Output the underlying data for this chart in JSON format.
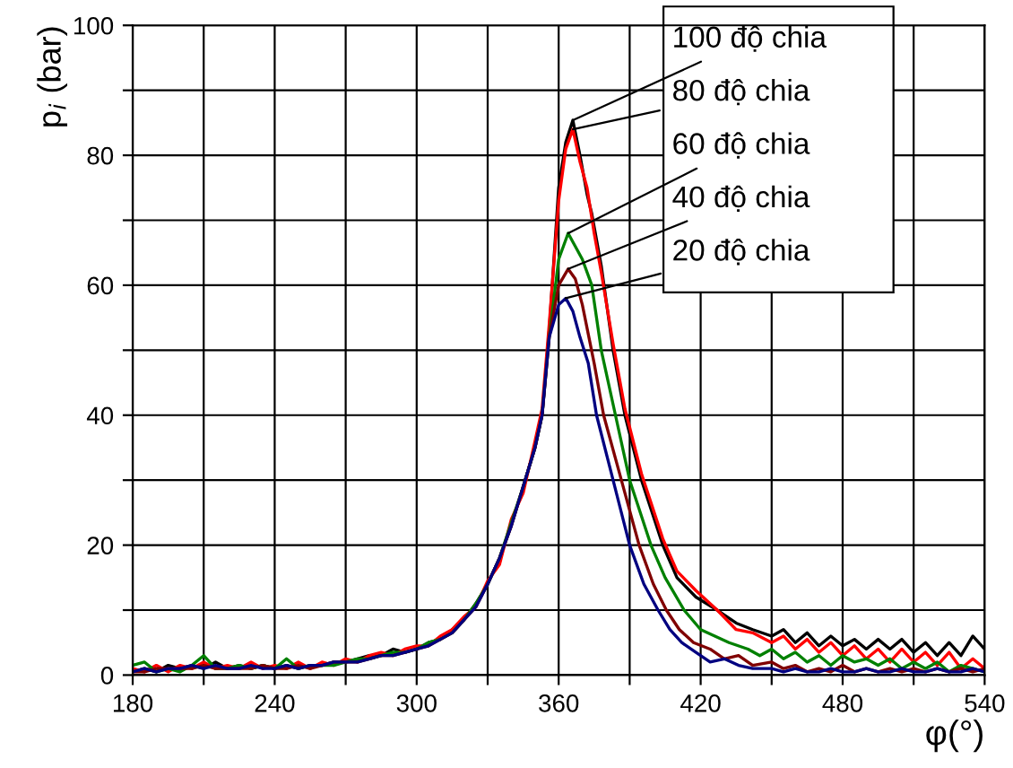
{
  "chart_data": {
    "type": "line",
    "xlabel": "φ(°)",
    "ylabel": "p$_{i}$ (bar)",
    "xlim": [
      180,
      540
    ],
    "ylim": [
      0,
      100
    ],
    "xticks": [
      180,
      {
        "value": 210,
        "label": null
      },
      240,
      {
        "value": 270,
        "label": null
      },
      300,
      {
        "value": 330,
        "label": null
      },
      360,
      {
        "value": 390,
        "label": null
      },
      420,
      {
        "value": 450,
        "label": null
      },
      480,
      {
        "value": 510,
        "label": null
      },
      540
    ],
    "yticks": [
      0,
      {
        "value": 10,
        "label": null
      },
      20,
      {
        "value": 30,
        "label": null
      },
      40,
      {
        "value": 50,
        "label": null
      },
      60,
      {
        "value": 70,
        "label": null
      },
      80,
      {
        "value": 90,
        "label": null
      },
      100
    ],
    "grid": true,
    "legend": false,
    "marker": "none",
    "line_style": "solid",
    "series": [
      {
        "name": "100 độ chia",
        "color": "#000000",
        "x": [
          180,
          185,
          190,
          195,
          200,
          205,
          210,
          215,
          220,
          225,
          230,
          235,
          240,
          245,
          250,
          255,
          260,
          265,
          270,
          275,
          280,
          285,
          290,
          295,
          300,
          305,
          310,
          315,
          320,
          325,
          330,
          335,
          340,
          345,
          350,
          353,
          356,
          360,
          363,
          366,
          369,
          372,
          374,
          378,
          383,
          388,
          395,
          404,
          410,
          418,
          427,
          435,
          442,
          450,
          455,
          460,
          465,
          470,
          475,
          480,
          485,
          490,
          495,
          500,
          505,
          510,
          515,
          520,
          525,
          530,
          535,
          540
        ],
        "values": [
          0.5,
          1,
          0.5,
          1.5,
          1,
          1.5,
          1,
          2,
          1,
          1.5,
          1,
          1.5,
          1,
          1.5,
          1,
          1.5,
          1.5,
          2,
          2,
          2.5,
          3,
          3,
          4,
          3.5,
          4,
          5,
          5.5,
          7,
          8.5,
          11,
          14,
          18,
          23,
          29,
          35,
          40,
          53,
          75,
          82,
          85.4,
          80,
          74,
          71,
          63,
          50,
          40,
          30,
          20,
          15,
          12,
          10,
          8,
          7,
          6,
          7,
          5,
          6.5,
          4.5,
          6,
          4.5,
          5.5,
          4,
          5.5,
          4,
          5.5,
          3.5,
          5,
          3,
          5,
          3,
          6,
          4
        ]
      },
      {
        "name": "80 độ chia",
        "color": "#ff0000",
        "x": [
          180,
          185,
          190,
          195,
          200,
          205,
          210,
          215,
          220,
          225,
          230,
          235,
          240,
          245,
          250,
          255,
          260,
          265,
          270,
          275,
          280,
          285,
          290,
          295,
          300,
          305,
          310,
          315,
          320,
          325,
          330,
          335,
          340,
          345,
          350,
          353,
          356,
          360,
          363,
          366,
          369,
          372,
          375,
          378,
          383,
          388,
          395,
          404,
          410,
          418,
          427,
          435,
          442,
          450,
          455,
          460,
          465,
          470,
          475,
          480,
          485,
          490,
          495,
          500,
          505,
          510,
          515,
          520,
          525,
          530,
          535,
          540
        ],
        "values": [
          1,
          0.5,
          1.5,
          0.5,
          1.5,
          1,
          2,
          1,
          1.5,
          1,
          2,
          1,
          1.5,
          1,
          2,
          1,
          2,
          1.5,
          2.5,
          2,
          3,
          3.5,
          3,
          4,
          4.5,
          4.5,
          6,
          7,
          9,
          10.5,
          14.5,
          17,
          24,
          28,
          36,
          41,
          54,
          73,
          81,
          84,
          79,
          75,
          68,
          62,
          51,
          41,
          31,
          21,
          16,
          13,
          10,
          7,
          6.5,
          5,
          6,
          4,
          5.5,
          3.5,
          5,
          3,
          4.5,
          2.5,
          4,
          2,
          4,
          2,
          3.5,
          1.5,
          3.5,
          1,
          2.5,
          1
        ]
      },
      {
        "name": "60 độ chia",
        "color": "#008000",
        "x": [
          180,
          185,
          190,
          195,
          200,
          205,
          210,
          215,
          220,
          225,
          230,
          235,
          240,
          245,
          250,
          255,
          260,
          265,
          270,
          275,
          280,
          285,
          290,
          295,
          300,
          305,
          310,
          315,
          320,
          325,
          330,
          335,
          340,
          345,
          350,
          353,
          356,
          360,
          364,
          367,
          370,
          374,
          378,
          384,
          390,
          399,
          405,
          413,
          420,
          426,
          432,
          440,
          445,
          450,
          455,
          460,
          465,
          470,
          475,
          480,
          485,
          490,
          495,
          500,
          505,
          510,
          515,
          520,
          525,
          530,
          535,
          540
        ],
        "values": [
          1.5,
          2,
          0.5,
          1,
          0.5,
          1.5,
          3,
          1,
          1,
          1.5,
          1,
          1.5,
          1,
          2.5,
          1,
          1.5,
          1.5,
          1.5,
          2,
          2.5,
          2.5,
          3,
          3.5,
          3.5,
          4,
          5,
          5.5,
          6.5,
          8.5,
          11,
          14,
          18,
          23.5,
          29,
          35,
          40,
          52,
          64,
          68,
          66,
          64,
          60,
          50,
          40,
          30,
          20,
          15,
          10,
          7,
          6,
          5,
          4,
          3,
          4,
          2.5,
          3.5,
          2,
          3,
          1.5,
          3,
          2,
          2.5,
          1.5,
          2.5,
          1,
          2,
          1,
          2,
          0.5,
          1.5,
          1,
          0.5
        ]
      },
      {
        "name": "40 độ chia",
        "color": "#800000",
        "x": [
          180,
          185,
          190,
          195,
          200,
          205,
          210,
          215,
          220,
          225,
          230,
          235,
          240,
          245,
          250,
          255,
          260,
          265,
          270,
          275,
          280,
          285,
          290,
          295,
          300,
          305,
          310,
          315,
          320,
          325,
          330,
          335,
          340,
          345,
          350,
          353,
          356,
          360,
          364,
          367,
          370,
          375,
          379,
          386.5,
          394,
          400,
          405.5,
          411,
          417,
          424,
          430,
          436,
          442,
          450,
          455,
          460,
          465,
          470,
          475,
          480,
          485,
          490,
          495,
          500,
          505,
          510,
          515,
          520,
          525,
          530,
          535,
          540
        ],
        "values": [
          0.5,
          0.5,
          1,
          1,
          1,
          1,
          1.5,
          1,
          1,
          1,
          1,
          1.5,
          1,
          1,
          1.5,
          1,
          1.5,
          2,
          2,
          2,
          2.5,
          3,
          3,
          3.5,
          4,
          4.5,
          5.5,
          6.5,
          8.5,
          10.5,
          14,
          18,
          23,
          29,
          35,
          40,
          52,
          60,
          62.5,
          61,
          57,
          48,
          40,
          30,
          20,
          14,
          10,
          7,
          5,
          4,
          2.5,
          3,
          1.5,
          2,
          1,
          1.5,
          0.5,
          1,
          0.5,
          1.5,
          0.5,
          1,
          0.5,
          1,
          0.5,
          1,
          0.5,
          1,
          0.5,
          1,
          0.5,
          1
        ]
      },
      {
        "name": "20 độ chia",
        "color": "#000080",
        "x": [
          180,
          185,
          190,
          195,
          200,
          205,
          210,
          215,
          220,
          225,
          230,
          235,
          240,
          245,
          250,
          255,
          260,
          265,
          270,
          275,
          280,
          285,
          290,
          295,
          300,
          305,
          310,
          315,
          320,
          325,
          330,
          335,
          340,
          345,
          350,
          353,
          356,
          360,
          363,
          366,
          369,
          372.5,
          376,
          383,
          390,
          396,
          402,
          407,
          412,
          418,
          424,
          430,
          436,
          442,
          450,
          455,
          460,
          465,
          470,
          475,
          480,
          485,
          490,
          495,
          500,
          505,
          510,
          515,
          520,
          525,
          530,
          535,
          540
        ],
        "values": [
          0.5,
          1,
          0.5,
          1,
          1,
          1.5,
          1,
          1.5,
          1,
          1,
          1.5,
          1,
          1,
          1.5,
          1,
          1.5,
          1.5,
          2,
          2,
          2,
          2.5,
          3,
          3,
          3.5,
          4,
          4.5,
          5.5,
          6.5,
          8.5,
          10.5,
          14,
          18,
          23,
          29,
          35,
          40,
          52,
          57,
          58,
          56,
          52,
          48,
          40,
          30,
          20,
          14,
          10,
          7,
          5,
          3.5,
          2,
          2.5,
          1.5,
          1,
          1,
          0.5,
          1,
          0.5,
          0.5,
          1,
          0.5,
          0.5,
          1,
          0.5,
          0.5,
          1,
          0.5,
          0.5,
          1,
          0.5,
          0.5,
          1,
          0.5
        ]
      }
    ]
  }
}
